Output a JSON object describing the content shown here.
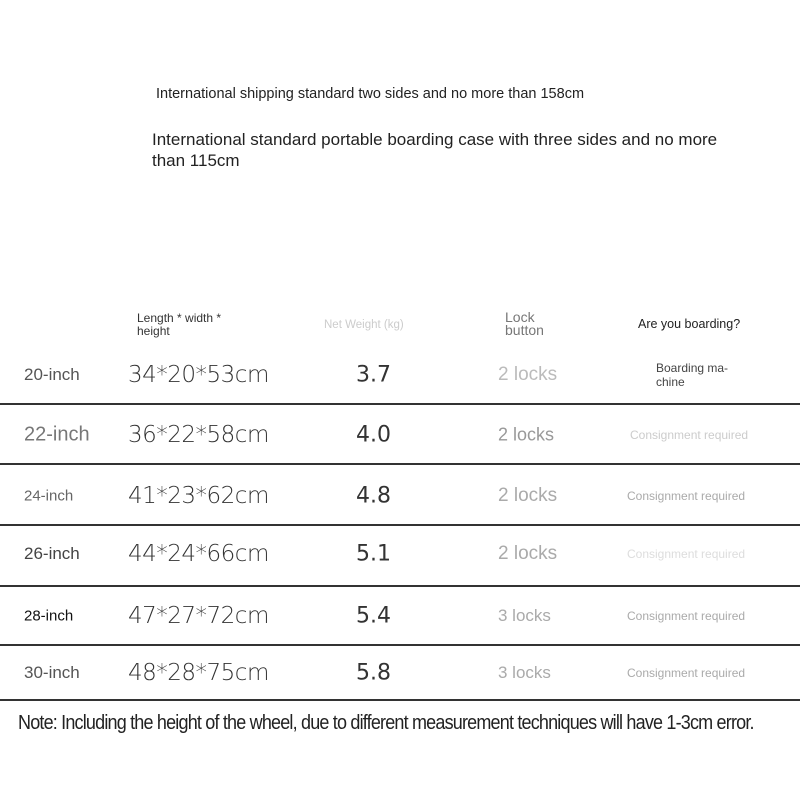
{
  "intro": {
    "line1": "International shipping standard two sides and no more than 158cm",
    "line2": "International standard portable boarding case with three sides and no more than 115cm"
  },
  "table": {
    "headers": {
      "dimensions": "Length * width * height",
      "weight": "Net Weight (kg)",
      "lock": "Lock button",
      "boarding": "Are you boarding?"
    },
    "rows": [
      {
        "size": "20-inch",
        "dims": "34*20*53cm",
        "weight": "3.7",
        "locks": "2 locks",
        "boarding": "Boarding ma-chine"
      },
      {
        "size": "22-inch",
        "dims": "36*22*58cm",
        "weight": "4.0",
        "locks": "2 locks",
        "boarding": "Consignment required"
      },
      {
        "size": "24-inch",
        "dims": "41*23*62cm",
        "weight": "4.8",
        "locks": "2 locks",
        "boarding": "Consignment required"
      },
      {
        "size": "26-inch",
        "dims": "44*24*66cm",
        "weight": "5.1",
        "locks": "2 locks",
        "boarding": "Consignment required"
      },
      {
        "size": "28-inch",
        "dims": "47*27*72cm",
        "weight": "5.4",
        "locks": "3 locks",
        "boarding": "Consignment required"
      },
      {
        "size": "30-inch",
        "dims": "48*28*75cm",
        "weight": "5.8",
        "locks": "3 locks",
        "boarding": "Consignment required"
      }
    ]
  },
  "note": "Note: Including the height of the wheel, due to different measurement techniques will have 1-3cm error."
}
